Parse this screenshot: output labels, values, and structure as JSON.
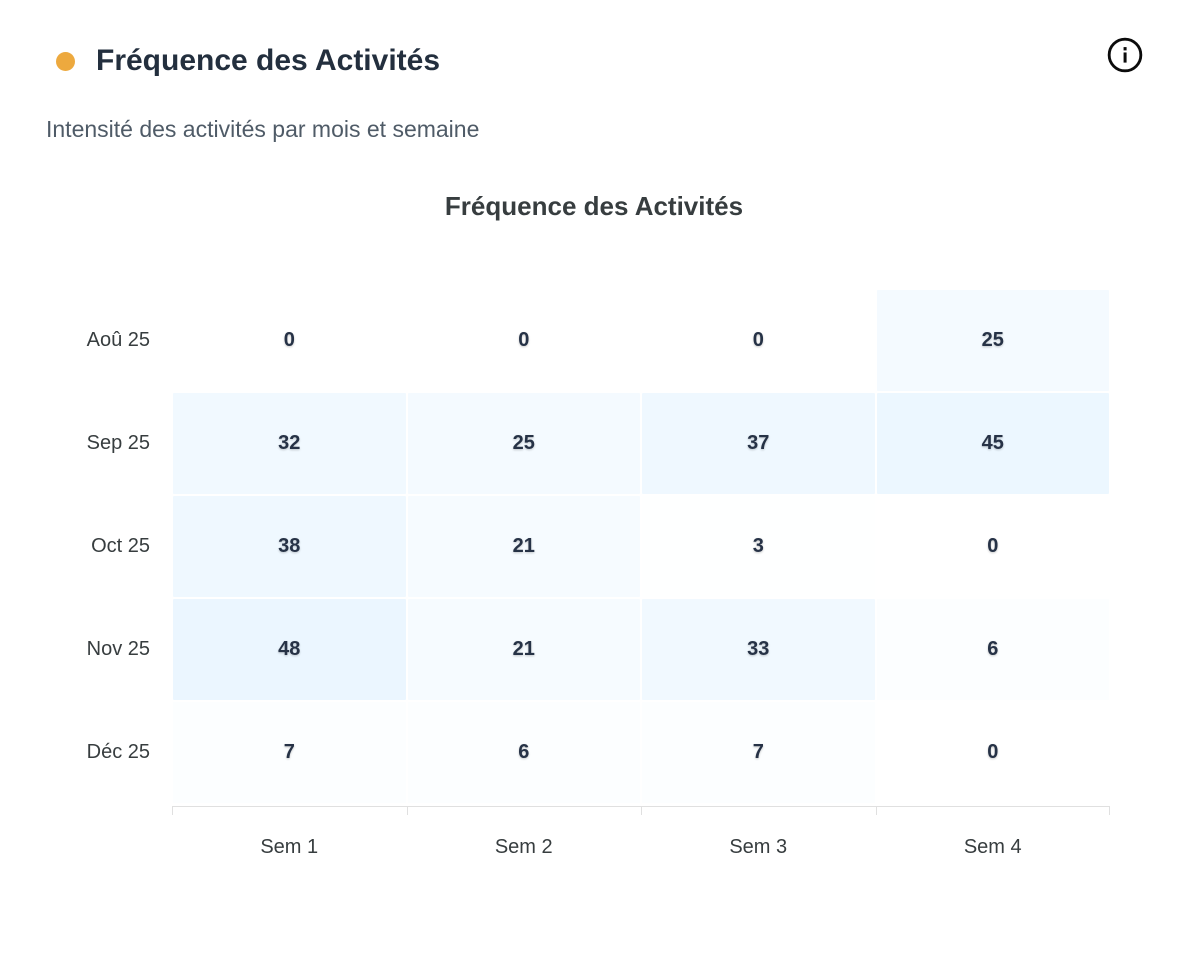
{
  "header": {
    "title": "Fréquence des Activités",
    "subtitle": "Intensité des activités par mois et semaine",
    "bullet_color": "#eda93e",
    "info_icon": "info-circle"
  },
  "chart_data": {
    "type": "heatmap",
    "title": "Fréquence des Activités",
    "xlabel": "",
    "ylabel": "",
    "categories": [
      "Sem 1",
      "Sem 2",
      "Sem 3",
      "Sem 4"
    ],
    "series": [
      {
        "name": "Aoû 25",
        "values": [
          0,
          0,
          0,
          25
        ]
      },
      {
        "name": "Sep 25",
        "values": [
          32,
          25,
          37,
          45
        ]
      },
      {
        "name": "Oct 25",
        "values": [
          38,
          21,
          3,
          0
        ]
      },
      {
        "name": "Nov 25",
        "values": [
          48,
          21,
          33,
          6
        ]
      },
      {
        "name": "Déc 25",
        "values": [
          7,
          6,
          7,
          0
        ]
      }
    ],
    "value_range": [
      0,
      48
    ],
    "heat_color": "#008ffb",
    "max_tint_alpha": 0.08,
    "zero_color": "#ffffff",
    "legend": "none",
    "grid": "off",
    "data_labels": "on"
  }
}
